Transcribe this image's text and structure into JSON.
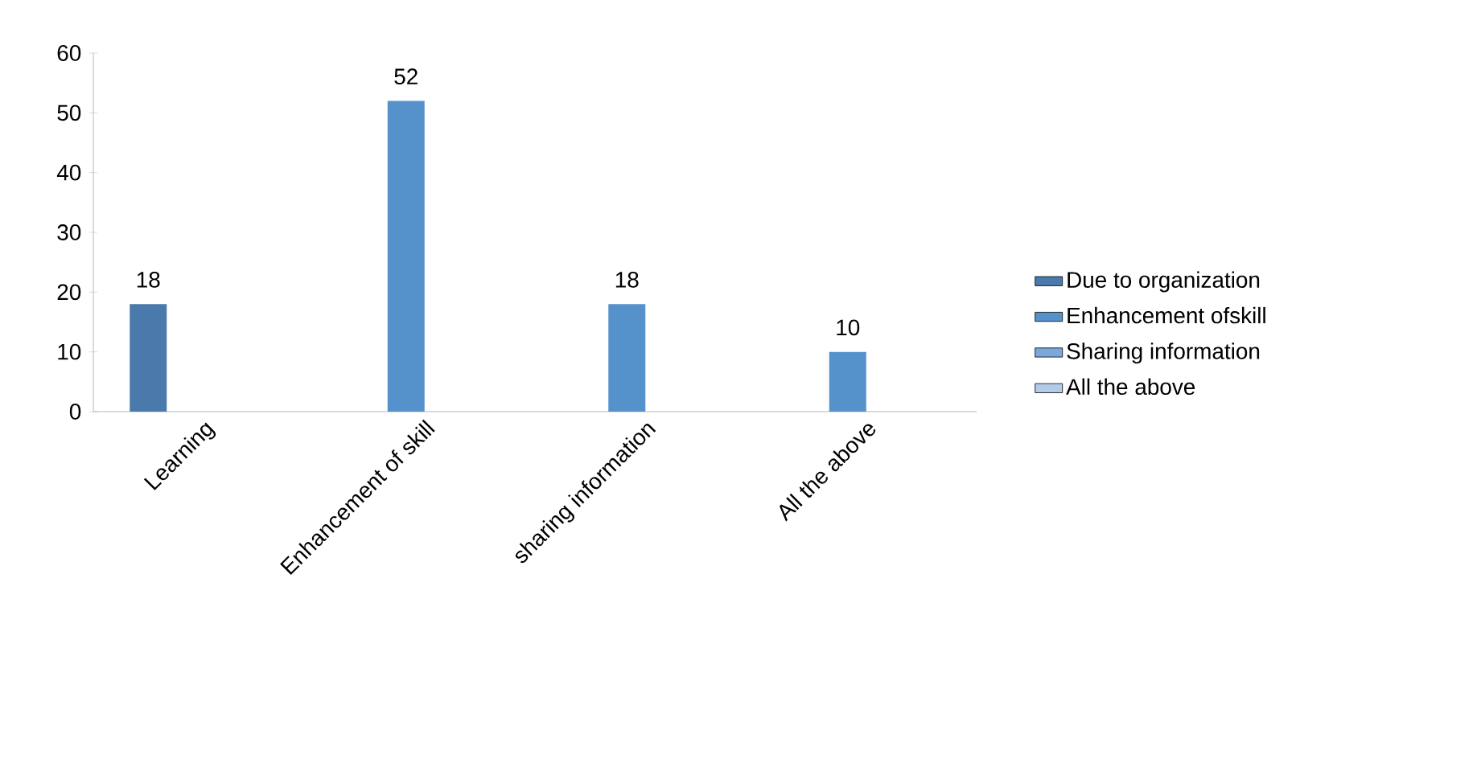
{
  "chart_data": {
    "type": "bar",
    "categories": [
      "Learning",
      "Enhancement of skill",
      "sharing information",
      "All the above"
    ],
    "series": [
      {
        "name": "Due to organization",
        "color": "#4a7aab",
        "values": [
          18,
          null,
          null,
          null
        ]
      },
      {
        "name": "Enhancement ofskill",
        "color": "#5592cb",
        "values": [
          null,
          52,
          18,
          10
        ]
      },
      {
        "name": "Sharing information",
        "color": "#7ba7d9",
        "values": [
          null,
          null,
          null,
          null
        ]
      },
      {
        "name": "All the above",
        "color": "#b3cbe8",
        "values": [
          null,
          null,
          null,
          null
        ]
      }
    ],
    "ylim": [
      0,
      60
    ],
    "yticks": [
      0,
      10,
      20,
      30,
      40,
      50,
      60
    ],
    "data_labels": true,
    "legend": "right",
    "grid": false
  }
}
